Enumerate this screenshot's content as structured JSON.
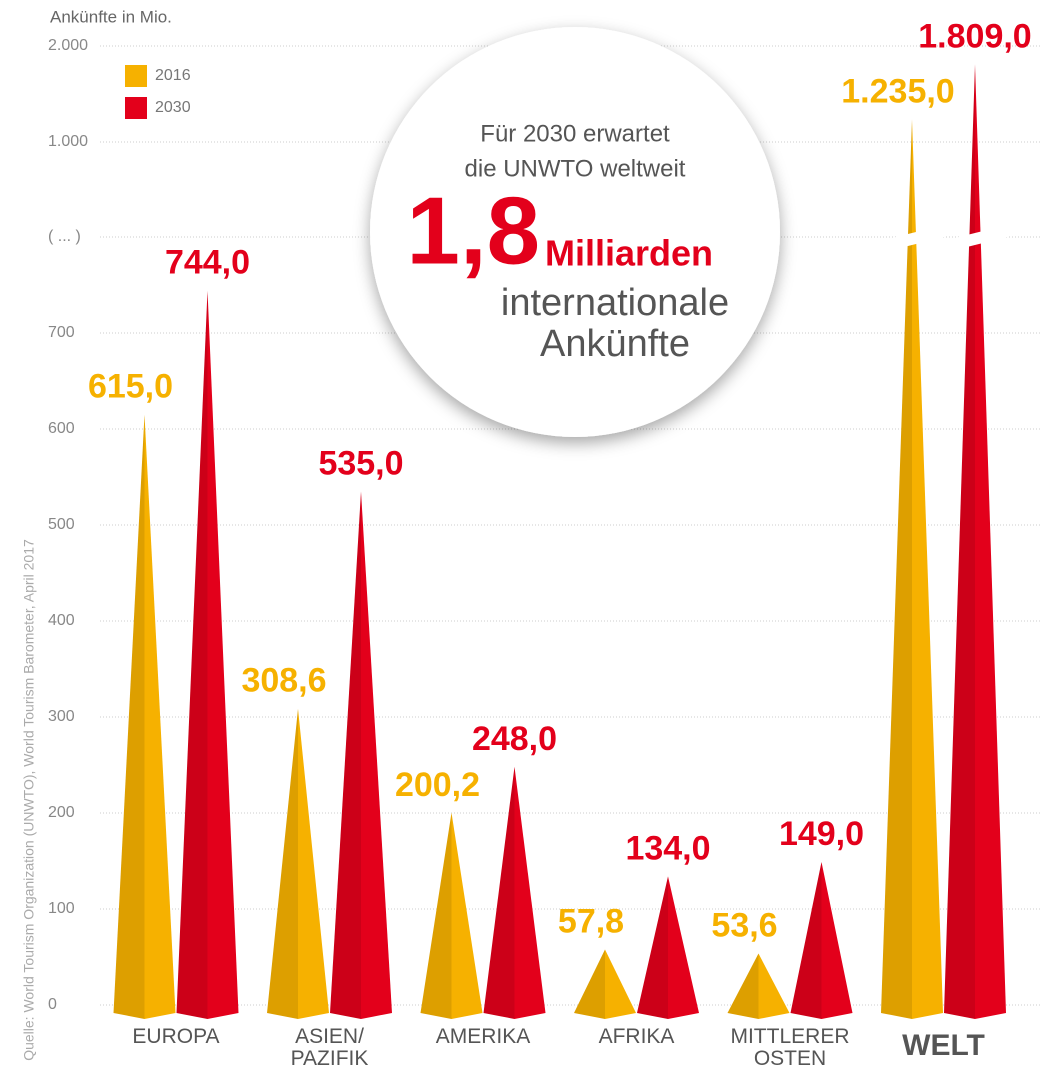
{
  "chart_data": {
    "type": "pyramid",
    "axis_label": "Ankünfte in Mio.",
    "source": "Quelle: World Tourism Organization (UNWTO), World Tourism Barometer, April 2017",
    "categories": [
      "EUROPA",
      "ASIEN/\nPAZIFIK",
      "AMERIKA",
      "AFRIKA",
      "MITTLERER\nOSTEN",
      "WELT"
    ],
    "series": [
      {
        "name": "2016",
        "color": "#f6b100",
        "values": [
          615.0,
          308.6,
          200.2,
          57.8,
          53.6,
          1235.0
        ],
        "value_labels": [
          "615,0",
          "308,6",
          "200,2",
          "57,8",
          "53,6",
          "1.235,0"
        ]
      },
      {
        "name": "2030",
        "color": "#e3001b",
        "values": [
          744.0,
          535.0,
          248.0,
          134.0,
          149.0,
          1809.0
        ],
        "value_labels": [
          "744,0",
          "535,0",
          "248,0",
          "134,0",
          "149,0",
          "1.809,0"
        ]
      }
    ],
    "ylim": [
      0,
      2000
    ],
    "yticks": [
      0,
      100,
      200,
      300,
      400,
      500,
      600,
      700,
      {
        "value": 1000,
        "label": "1.000"
      },
      {
        "value": 2000,
        "label": "2.000"
      }
    ],
    "axis_break": {
      "label": "( ... )",
      "from": 800,
      "to": 1000
    },
    "grid": true,
    "callout": {
      "line1": "Für 2030 erwartet",
      "line2": "die UNWTO weltweit",
      "big_number": "1,8",
      "unit": "Milliarden",
      "line3": "internationale",
      "line4": "Ankünfte"
    }
  }
}
